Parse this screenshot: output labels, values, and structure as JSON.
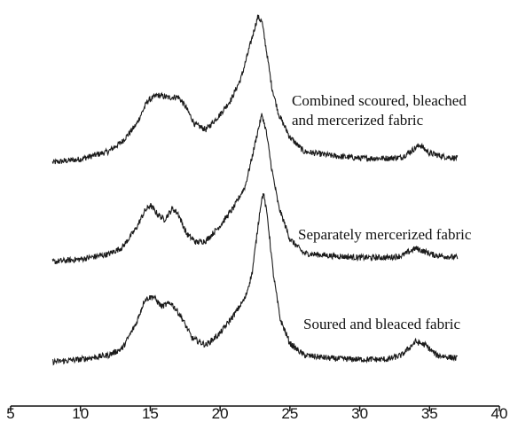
{
  "chart_data": {
    "type": "line",
    "title": "",
    "xlabel": "",
    "ylabel": "",
    "xlim": [
      5,
      40
    ],
    "x_ticks": [
      5,
      10,
      15,
      20,
      25,
      30,
      35,
      40
    ],
    "x_tick_labels": [
      "5",
      "10",
      "15",
      "20",
      "25",
      "30",
      "35",
      "40"
    ],
    "y_axis_shown": false,
    "grid": false,
    "legend": "none",
    "series": [
      {
        "name": "Combined scoured, bleached and mercerized fabric",
        "label_lines": [
          "Combined scoured, bleached",
          "and mercerized fabric"
        ],
        "points": [
          [
            8,
            0.05
          ],
          [
            10,
            0.09
          ],
          [
            12,
            0.18
          ],
          [
            13,
            0.3
          ],
          [
            14,
            0.5
          ],
          [
            14.8,
            0.78
          ],
          [
            15.5,
            0.85
          ],
          [
            16.3,
            0.82
          ],
          [
            17,
            0.83
          ],
          [
            17.5,
            0.72
          ],
          [
            18.2,
            0.5
          ],
          [
            19,
            0.44
          ],
          [
            20,
            0.62
          ],
          [
            20.8,
            0.8
          ],
          [
            21.5,
            1.05
          ],
          [
            22,
            1.35
          ],
          [
            22.4,
            1.6
          ],
          [
            22.7,
            1.78
          ],
          [
            23,
            1.72
          ],
          [
            23.3,
            1.4
          ],
          [
            23.7,
            0.95
          ],
          [
            24.2,
            0.62
          ],
          [
            25,
            0.35
          ],
          [
            26,
            0.18
          ],
          [
            28,
            0.13
          ],
          [
            30,
            0.1
          ],
          [
            32,
            0.1
          ],
          [
            33,
            0.11
          ],
          [
            33.8,
            0.2
          ],
          [
            34.3,
            0.26
          ],
          [
            35,
            0.16
          ],
          [
            36,
            0.12
          ],
          [
            37,
            0.1
          ]
        ]
      },
      {
        "name": "Separately mercerized fabric",
        "label_lines": [
          "Separately mercerized fabric"
        ],
        "points": [
          [
            8,
            0.05
          ],
          [
            10,
            0.08
          ],
          [
            12,
            0.14
          ],
          [
            13,
            0.22
          ],
          [
            14,
            0.45
          ],
          [
            14.6,
            0.65
          ],
          [
            15,
            0.72
          ],
          [
            15.5,
            0.62
          ],
          [
            16,
            0.55
          ],
          [
            16.6,
            0.68
          ],
          [
            17,
            0.62
          ],
          [
            17.6,
            0.38
          ],
          [
            18.3,
            0.28
          ],
          [
            19,
            0.3
          ],
          [
            20,
            0.48
          ],
          [
            21,
            0.7
          ],
          [
            21.8,
            0.95
          ],
          [
            22.3,
            1.3
          ],
          [
            22.7,
            1.6
          ],
          [
            23,
            1.8
          ],
          [
            23.3,
            1.6
          ],
          [
            23.7,
            1.15
          ],
          [
            24.2,
            0.7
          ],
          [
            25,
            0.32
          ],
          [
            26,
            0.15
          ],
          [
            28,
            0.12
          ],
          [
            30,
            0.1
          ],
          [
            32,
            0.1
          ],
          [
            33,
            0.12
          ],
          [
            34,
            0.21
          ],
          [
            34.5,
            0.18
          ],
          [
            35.3,
            0.13
          ],
          [
            37,
            0.1
          ]
        ]
      },
      {
        "name": "Soured and bleaced fabric",
        "label_lines": [
          "Soured and bleaced fabric"
        ],
        "points": [
          [
            8,
            0.04
          ],
          [
            10,
            0.07
          ],
          [
            12,
            0.12
          ],
          [
            13,
            0.2
          ],
          [
            14,
            0.5
          ],
          [
            14.6,
            0.78
          ],
          [
            15.2,
            0.82
          ],
          [
            15.8,
            0.7
          ],
          [
            16.5,
            0.74
          ],
          [
            17.2,
            0.58
          ],
          [
            18,
            0.32
          ],
          [
            19,
            0.24
          ],
          [
            20,
            0.38
          ],
          [
            21,
            0.6
          ],
          [
            21.8,
            0.8
          ],
          [
            22.3,
            1.1
          ],
          [
            22.6,
            1.5
          ],
          [
            22.9,
            1.9
          ],
          [
            23.1,
            2.05
          ],
          [
            23.4,
            1.75
          ],
          [
            23.8,
            1.1
          ],
          [
            24.3,
            0.55
          ],
          [
            25,
            0.26
          ],
          [
            26,
            0.12
          ],
          [
            28,
            0.08
          ],
          [
            30,
            0.07
          ],
          [
            32,
            0.07
          ],
          [
            33,
            0.12
          ],
          [
            34,
            0.28
          ],
          [
            34.7,
            0.24
          ],
          [
            35.5,
            0.12
          ],
          [
            37,
            0.08
          ]
        ]
      }
    ]
  }
}
